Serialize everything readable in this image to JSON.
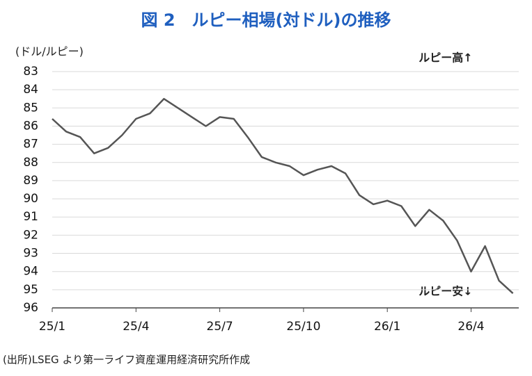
{
  "chart_data": {
    "type": "line",
    "title": "図 2　ルピー相場(対ドル)の推移",
    "y_label": "(ドル/ルピー)",
    "annotations": [
      "ルピー高↑",
      "ルピー安↓"
    ],
    "source": "(出所)LSEG より第一ライフ資産運用経済研究所作成",
    "categories": [
      "25/1",
      null,
      null,
      null,
      null,
      null,
      "25/4",
      null,
      null,
      null,
      null,
      null,
      "25/7",
      null,
      null,
      null,
      null,
      null,
      "25/10",
      null,
      null,
      null,
      null,
      null,
      "26/1",
      null,
      null,
      null,
      null,
      null,
      "26/4",
      null,
      null,
      null
    ],
    "values": [
      85.6,
      86.3,
      86.6,
      87.5,
      87.2,
      86.5,
      85.6,
      85.3,
      84.5,
      85.0,
      85.5,
      86.0,
      85.5,
      85.6,
      86.6,
      87.7,
      88.0,
      88.2,
      88.7,
      88.4,
      88.2,
      88.6,
      89.8,
      90.3,
      90.1,
      90.4,
      91.5,
      90.6,
      91.2,
      92.3,
      94.0,
      92.6,
      94.5,
      95.2
    ],
    "color": "#555555",
    "ylim": [
      83,
      96
    ],
    "inverted": true,
    "yticks": [
      83,
      84,
      85,
      86,
      87,
      88,
      89,
      90,
      91,
      92,
      93,
      94,
      95,
      96
    ],
    "grid": true
  }
}
